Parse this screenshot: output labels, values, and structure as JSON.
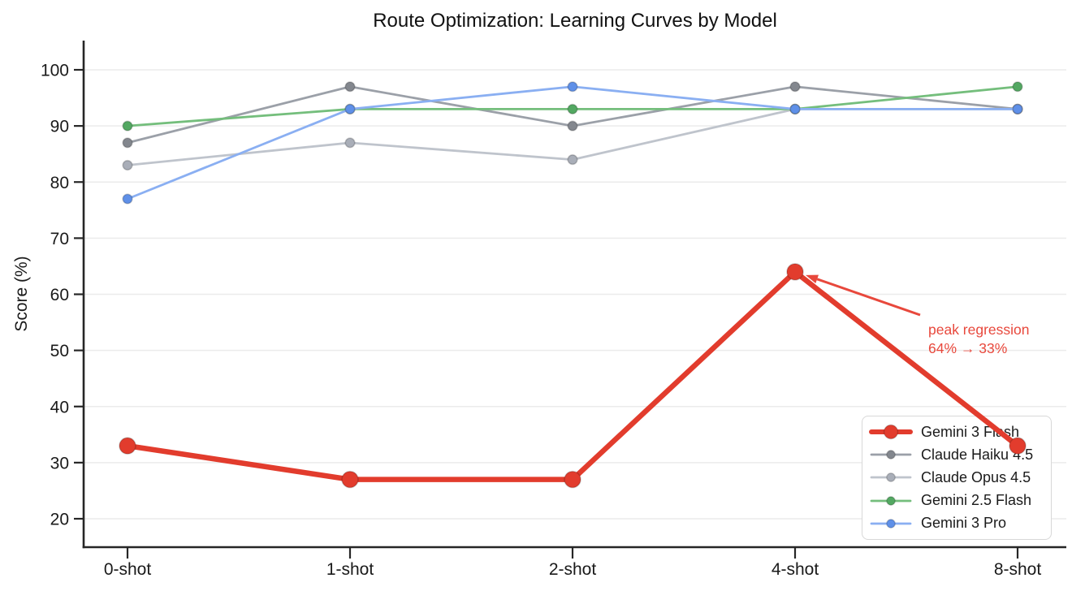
{
  "chart_data": {
    "type": "line",
    "title": "Route Optimization: Learning Curves by Model",
    "xlabel": "",
    "ylabel": "Score (%)",
    "categories": [
      "0-shot",
      "1-shot",
      "2-shot",
      "4-shot",
      "8-shot"
    ],
    "yticks": [
      20,
      30,
      40,
      50,
      60,
      70,
      80,
      90,
      100
    ],
    "ylim": [
      15,
      105
    ],
    "grid": true,
    "legend_position": "lower right",
    "series": [
      {
        "name": "Gemini 3 Flash",
        "values": [
          33,
          27,
          27,
          64,
          33
        ],
        "color": "#E23C2D",
        "marker_color": "#E23C2D",
        "highlight": true
      },
      {
        "name": "Claude Haiku 4.5",
        "values": [
          87,
          97,
          90,
          97,
          93
        ],
        "color": "#9BA0A8",
        "marker_color": "#83878E",
        "highlight": false
      },
      {
        "name": "Claude Opus 4.5",
        "values": [
          83,
          87,
          84,
          93,
          93
        ],
        "color": "#BFC4CC",
        "marker_color": "#A9AEB8",
        "highlight": false
      },
      {
        "name": "Gemini 2.5 Flash",
        "values": [
          90,
          93,
          93,
          93,
          97
        ],
        "color": "#74BE7C",
        "marker_color": "#53A862",
        "highlight": false
      },
      {
        "name": "Gemini 3 Pro",
        "values": [
          77,
          93,
          97,
          93,
          93
        ],
        "color": "#8AAFF2",
        "marker_color": "#5F90E8",
        "highlight": false
      }
    ],
    "annotation": {
      "line1": "peak regression",
      "line2": "64% → 33%",
      "color": "#E8483C",
      "target": {
        "category": "4-shot",
        "value": 64
      }
    }
  }
}
